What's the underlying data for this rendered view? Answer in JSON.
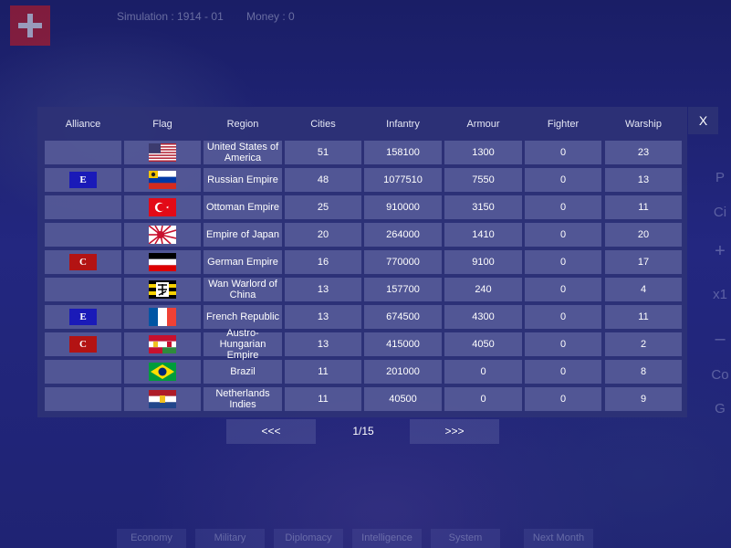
{
  "top_bar": {
    "simulation_label": "Simulation : 1914 - 01",
    "money_label": "Money : 0",
    "player_flag": "switzerland-flag-icon"
  },
  "side_controls": [
    "P",
    "Ci",
    "+",
    "x1",
    "–",
    "Co",
    "G"
  ],
  "bottom_tabs": [
    "Economy",
    "Military",
    "Diplomacy",
    "Intelligence",
    "System",
    "Next Month"
  ],
  "table": {
    "close_label": "X",
    "headers": [
      "Alliance",
      "Flag",
      "Region",
      "Cities",
      "Infantry",
      "Armour",
      "Fighter",
      "Warship"
    ],
    "rows": [
      {
        "alliance": "",
        "flag": "usa-flag-icon",
        "region": "United States of America",
        "cities": "51",
        "infantry": "158100",
        "armour": "1300",
        "fighter": "0",
        "warship": "23"
      },
      {
        "alliance": "E",
        "flag": "russia-flag-icon",
        "region": "Russian Empire",
        "cities": "48",
        "infantry": "1077510",
        "armour": "7550",
        "fighter": "0",
        "warship": "13"
      },
      {
        "alliance": "",
        "flag": "ottoman-flag-icon",
        "region": "Ottoman Empire",
        "cities": "25",
        "infantry": "910000",
        "armour": "3150",
        "fighter": "0",
        "warship": "11"
      },
      {
        "alliance": "",
        "flag": "japan-flag-icon",
        "region": "Empire of Japan",
        "cities": "20",
        "infantry": "264000",
        "armour": "1410",
        "fighter": "0",
        "warship": "20"
      },
      {
        "alliance": "C",
        "flag": "germany-flag-icon",
        "region": "German Empire",
        "cities": "16",
        "infantry": "770000",
        "armour": "9100",
        "fighter": "0",
        "warship": "17"
      },
      {
        "alliance": "",
        "flag": "wan-warlord-flag-icon",
        "region": "Wan Warlord of China",
        "cities": "13",
        "infantry": "157700",
        "armour": "240",
        "fighter": "0",
        "warship": "4"
      },
      {
        "alliance": "E",
        "flag": "france-flag-icon",
        "region": "French Republic",
        "cities": "13",
        "infantry": "674500",
        "armour": "4300",
        "fighter": "0",
        "warship": "11"
      },
      {
        "alliance": "C",
        "flag": "austria-hungary-flag-icon",
        "region": "Austro-Hungarian Empire",
        "cities": "13",
        "infantry": "415000",
        "armour": "4050",
        "fighter": "0",
        "warship": "2"
      },
      {
        "alliance": "",
        "flag": "brazil-flag-icon",
        "region": "Brazil",
        "cities": "11",
        "infantry": "201000",
        "armour": "0",
        "fighter": "0",
        "warship": "8"
      },
      {
        "alliance": "",
        "flag": "netherlands-indies-flag-icon",
        "region": "Netherlands Indies",
        "cities": "11",
        "infantry": "40500",
        "armour": "0",
        "fighter": "0",
        "warship": "9"
      }
    ]
  },
  "pager": {
    "prev_label": "<<<",
    "page_label": "1/15",
    "next_label": ">>>"
  },
  "colors": {
    "alliance_E": "#1a1ab8",
    "alliance_C": "#b31313",
    "panel": "#2e3276",
    "cell": "#5c619e"
  }
}
